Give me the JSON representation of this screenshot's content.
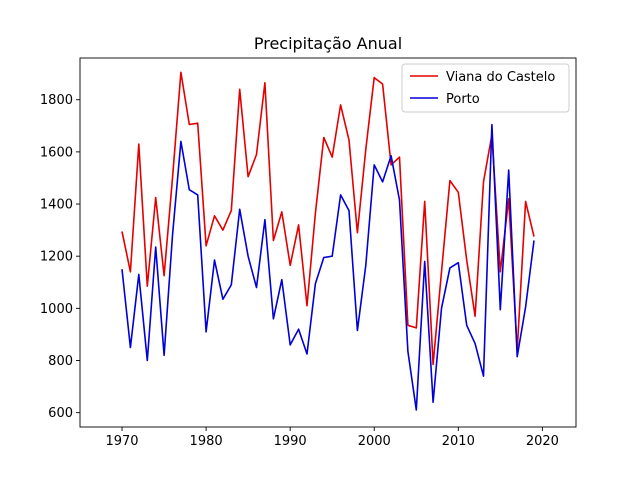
{
  "chart_data": {
    "type": "line",
    "title": "Precipitação Anual",
    "xlabel": "",
    "ylabel": "",
    "xlim": [
      1965,
      2024
    ],
    "ylim": [
      545,
      1960
    ],
    "xticks": [
      1970,
      1980,
      1990,
      2000,
      2010,
      2020
    ],
    "yticks": [
      600,
      800,
      1000,
      1200,
      1400,
      1600,
      1800
    ],
    "grid": false,
    "legend_position": "top-right",
    "x": [
      1970,
      1971,
      1972,
      1973,
      1974,
      1975,
      1976,
      1977,
      1978,
      1979,
      1980,
      1981,
      1982,
      1983,
      1984,
      1985,
      1986,
      1987,
      1988,
      1989,
      1990,
      1991,
      1992,
      1993,
      1994,
      1995,
      1996,
      1997,
      1998,
      1999,
      2000,
      2001,
      2002,
      2003,
      2004,
      2005,
      2006,
      2007,
      2008,
      2009,
      2010,
      2011,
      2012,
      2013,
      2014,
      2015,
      2016,
      2017,
      2018,
      2019
    ],
    "series": [
      {
        "name": "Viana do Castelo",
        "color": "#e30000",
        "values": [
          1295,
          1140,
          1630,
          1085,
          1425,
          1125,
          1500,
          1905,
          1705,
          1710,
          1240,
          1355,
          1300,
          1375,
          1840,
          1505,
          1590,
          1865,
          1260,
          1370,
          1165,
          1320,
          1010,
          1365,
          1655,
          1580,
          1780,
          1645,
          1290,
          1610,
          1885,
          1860,
          1550,
          1580,
          935,
          925,
          1410,
          785,
          1140,
          1490,
          1445,
          1185,
          970,
          1485,
          1665,
          1140,
          1420,
          840,
          1410,
          1275
        ]
      },
      {
        "name": "Porto",
        "color": "#0000d8",
        "values": [
          1150,
          850,
          1130,
          800,
          1235,
          820,
          1280,
          1640,
          1455,
          1435,
          910,
          1185,
          1035,
          1090,
          1380,
          1200,
          1080,
          1340,
          960,
          1110,
          860,
          920,
          825,
          1095,
          1195,
          1200,
          1435,
          1375,
          915,
          1165,
          1550,
          1485,
          1585,
          1415,
          835,
          610,
          1180,
          640,
          1000,
          1155,
          1175,
          935,
          865,
          740,
          1705,
          995,
          1530,
          815,
          1005,
          1260
        ]
      }
    ]
  }
}
